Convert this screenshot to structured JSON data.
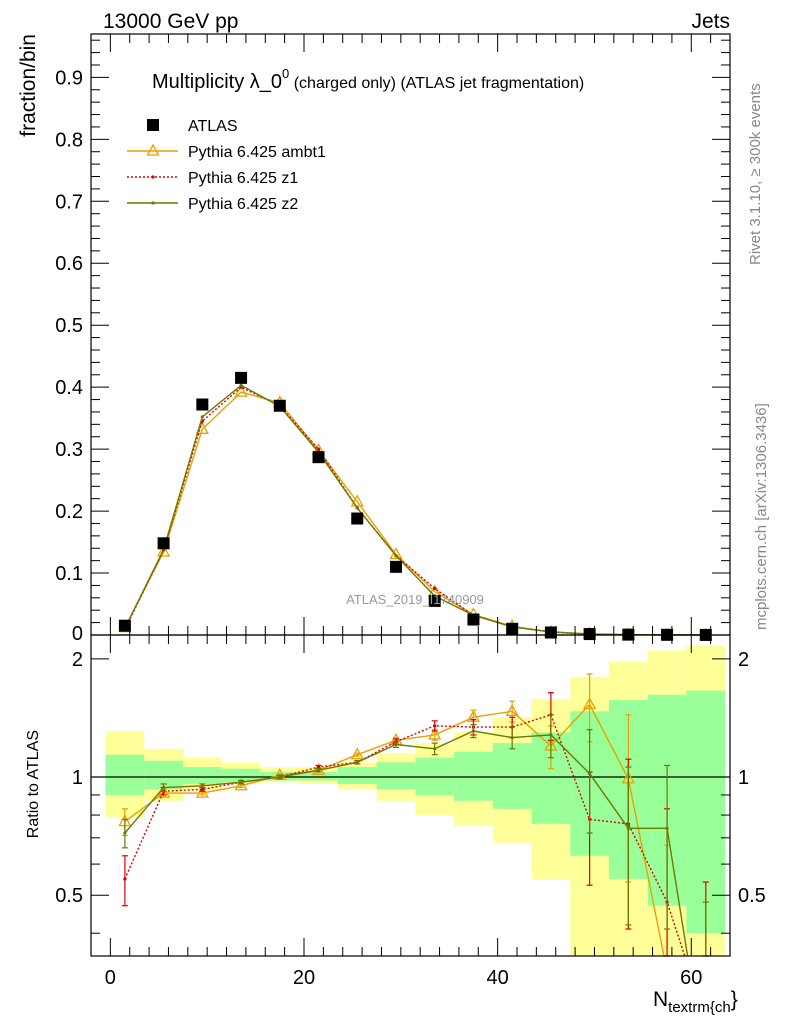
{
  "header": {
    "left": "13000 GeV pp",
    "right": "Jets"
  },
  "side_labels": {
    "top": "Rivet 3.1.10, ≥ 300k events",
    "bottom": "mcplots.cern.ch [arXiv:1306.3436]"
  },
  "watermark": "ATLAS_2019_I1740909",
  "chart_data": [
    {
      "type": "scatter",
      "title_main": "Multiplicity λ_0",
      "title_sup": "0",
      "title_rest": " (charged only) (ATLAS jet fragmentation)",
      "ylabel": "fraction/bin",
      "xlim": [
        -2,
        64
      ],
      "ylim": [
        0,
        0.97
      ],
      "yticks": [
        0.1,
        0.2,
        0.3,
        0.4,
        0.5,
        0.6,
        0.7,
        0.8,
        0.9
      ],
      "ytick_labels": [
        "0.1",
        "0.2",
        "0.3",
        "0.4",
        "0.5",
        "0.6",
        "0.7",
        "0.8",
        "0.9"
      ],
      "y0_label": "0",
      "x": [
        1.5,
        5.5,
        9.5,
        13.5,
        17.5,
        21.5,
        25.5,
        29.5,
        33.5,
        37.5,
        41.5,
        45.5,
        49.5,
        53.5,
        57.5,
        61.5
      ],
      "series": [
        {
          "name": "ATLAS",
          "color": "#000000",
          "marker": "square",
          "values": [
            0.015,
            0.148,
            0.372,
            0.415,
            0.37,
            0.287,
            0.188,
            0.11,
            0.055,
            0.025,
            0.01,
            0.004,
            0.0015,
            0.0006,
            0.0003,
            0.0001
          ]
        },
        {
          "name": "Pythia 6.425 ambt1",
          "color": "#e8a100",
          "marker": "triangle",
          "dash": "",
          "values": [
            0.012,
            0.134,
            0.332,
            0.392,
            0.375,
            0.298,
            0.215,
            0.13,
            0.07,
            0.033,
            0.014,
            0.005,
            0.002,
            0.0006,
            0.0001,
            0.0
          ]
        },
        {
          "name": "Pythia 6.425 z1",
          "color": "#dd0000",
          "marker": "dot",
          "dash": "2,2",
          "values": [
            0.009,
            0.137,
            0.345,
            0.4,
            0.37,
            0.3,
            0.205,
            0.128,
            0.075,
            0.032,
            0.013,
            0.005,
            0.001,
            0.0003,
            0.0001,
            0.0
          ]
        },
        {
          "name": "Pythia 6.425 z2",
          "color": "#6b7a00",
          "marker": "dot",
          "dash": "",
          "values": [
            0.011,
            0.138,
            0.352,
            0.403,
            0.369,
            0.295,
            0.205,
            0.128,
            0.063,
            0.032,
            0.013,
            0.005,
            0.0015,
            0.0005,
            0.0002,
            0.0
          ]
        }
      ]
    },
    {
      "type": "line",
      "ylabel": "Ratio to ATLAS",
      "xlabel": "N",
      "xlabel_sub": "textrm{ch",
      "xlabel_end": "}",
      "xlim": [
        -2,
        64
      ],
      "ylim": [
        0.35,
        2.3
      ],
      "xticks": [
        0,
        20,
        40,
        60
      ],
      "xtick_labels": [
        "0",
        "20",
        "40",
        "60"
      ],
      "yticks": [
        0.5,
        1,
        2
      ],
      "ytick_labels": [
        "0.5",
        "1",
        "2"
      ],
      "bin_edges": [
        -0.5,
        3.5,
        7.5,
        11.5,
        15.5,
        19.5,
        23.5,
        27.5,
        31.5,
        35.5,
        39.5,
        43.5,
        47.5,
        51.5,
        55.5,
        59.5,
        63.5
      ],
      "band_green": {
        "color": "#99ff99",
        "low": [
          0.9,
          0.93,
          0.96,
          0.97,
          0.98,
          0.98,
          0.96,
          0.93,
          0.9,
          0.87,
          0.83,
          0.76,
          0.63,
          0.55,
          0.47,
          0.4
        ],
        "high": [
          1.14,
          1.1,
          1.06,
          1.05,
          1.03,
          1.03,
          1.06,
          1.09,
          1.12,
          1.16,
          1.22,
          1.3,
          1.47,
          1.57,
          1.62,
          1.66
        ]
      },
      "band_yellow": {
        "color": "#ffff99",
        "low": [
          0.79,
          0.87,
          0.93,
          0.96,
          0.97,
          0.96,
          0.93,
          0.87,
          0.8,
          0.75,
          0.68,
          0.55,
          0.35,
          0.35,
          0.35,
          0.35
        ],
        "high": [
          1.31,
          1.18,
          1.12,
          1.09,
          1.06,
          1.06,
          1.09,
          1.15,
          1.22,
          1.3,
          1.42,
          1.58,
          1.8,
          1.97,
          2.1,
          2.16
        ]
      },
      "series": [
        {
          "name": "Pythia 6.425 ambt1",
          "color": "#e8a100",
          "marker": "triangle",
          "dash": "",
          "values": [
            0.77,
            0.91,
            0.91,
            0.95,
            1.01,
            1.04,
            1.14,
            1.24,
            1.28,
            1.42,
            1.47,
            1.2,
            1.53,
            0.99,
            0.32,
            null
          ],
          "errors": [
            0.06,
            0.02,
            0.01,
            0.01,
            0.01,
            0.01,
            0.01,
            0.02,
            0.04,
            0.06,
            0.09,
            0.15,
            0.3,
            0.45,
            0.35,
            null
          ]
        },
        {
          "name": "Pythia 6.425 z1",
          "color": "#dd0000",
          "marker": "dot",
          "dash": "2,2",
          "values": [
            0.55,
            0.92,
            0.93,
            0.97,
            1.0,
            1.06,
            1.09,
            1.23,
            1.35,
            1.34,
            1.34,
            1.44,
            0.78,
            0.76,
            0.48,
            0.24
          ],
          "errors": [
            0.08,
            0.02,
            0.01,
            0.01,
            0.01,
            0.01,
            0.01,
            0.02,
            0.04,
            0.06,
            0.08,
            0.2,
            0.25,
            0.35,
            0.35,
            0.3
          ]
        },
        {
          "name": "Pythia 6.425 z2",
          "color": "#6b7a00",
          "marker": "dot",
          "dash": "",
          "values": [
            0.72,
            0.94,
            0.95,
            0.97,
            1.0,
            1.04,
            1.09,
            1.21,
            1.18,
            1.31,
            1.26,
            1.28,
            1.02,
            0.74,
            0.74,
            0.18
          ],
          "errors": [
            0.06,
            0.02,
            0.01,
            0.01,
            0.01,
            0.01,
            0.01,
            0.02,
            0.04,
            0.05,
            0.08,
            0.16,
            0.3,
            0.32,
            0.33,
            0.3
          ]
        }
      ]
    }
  ]
}
